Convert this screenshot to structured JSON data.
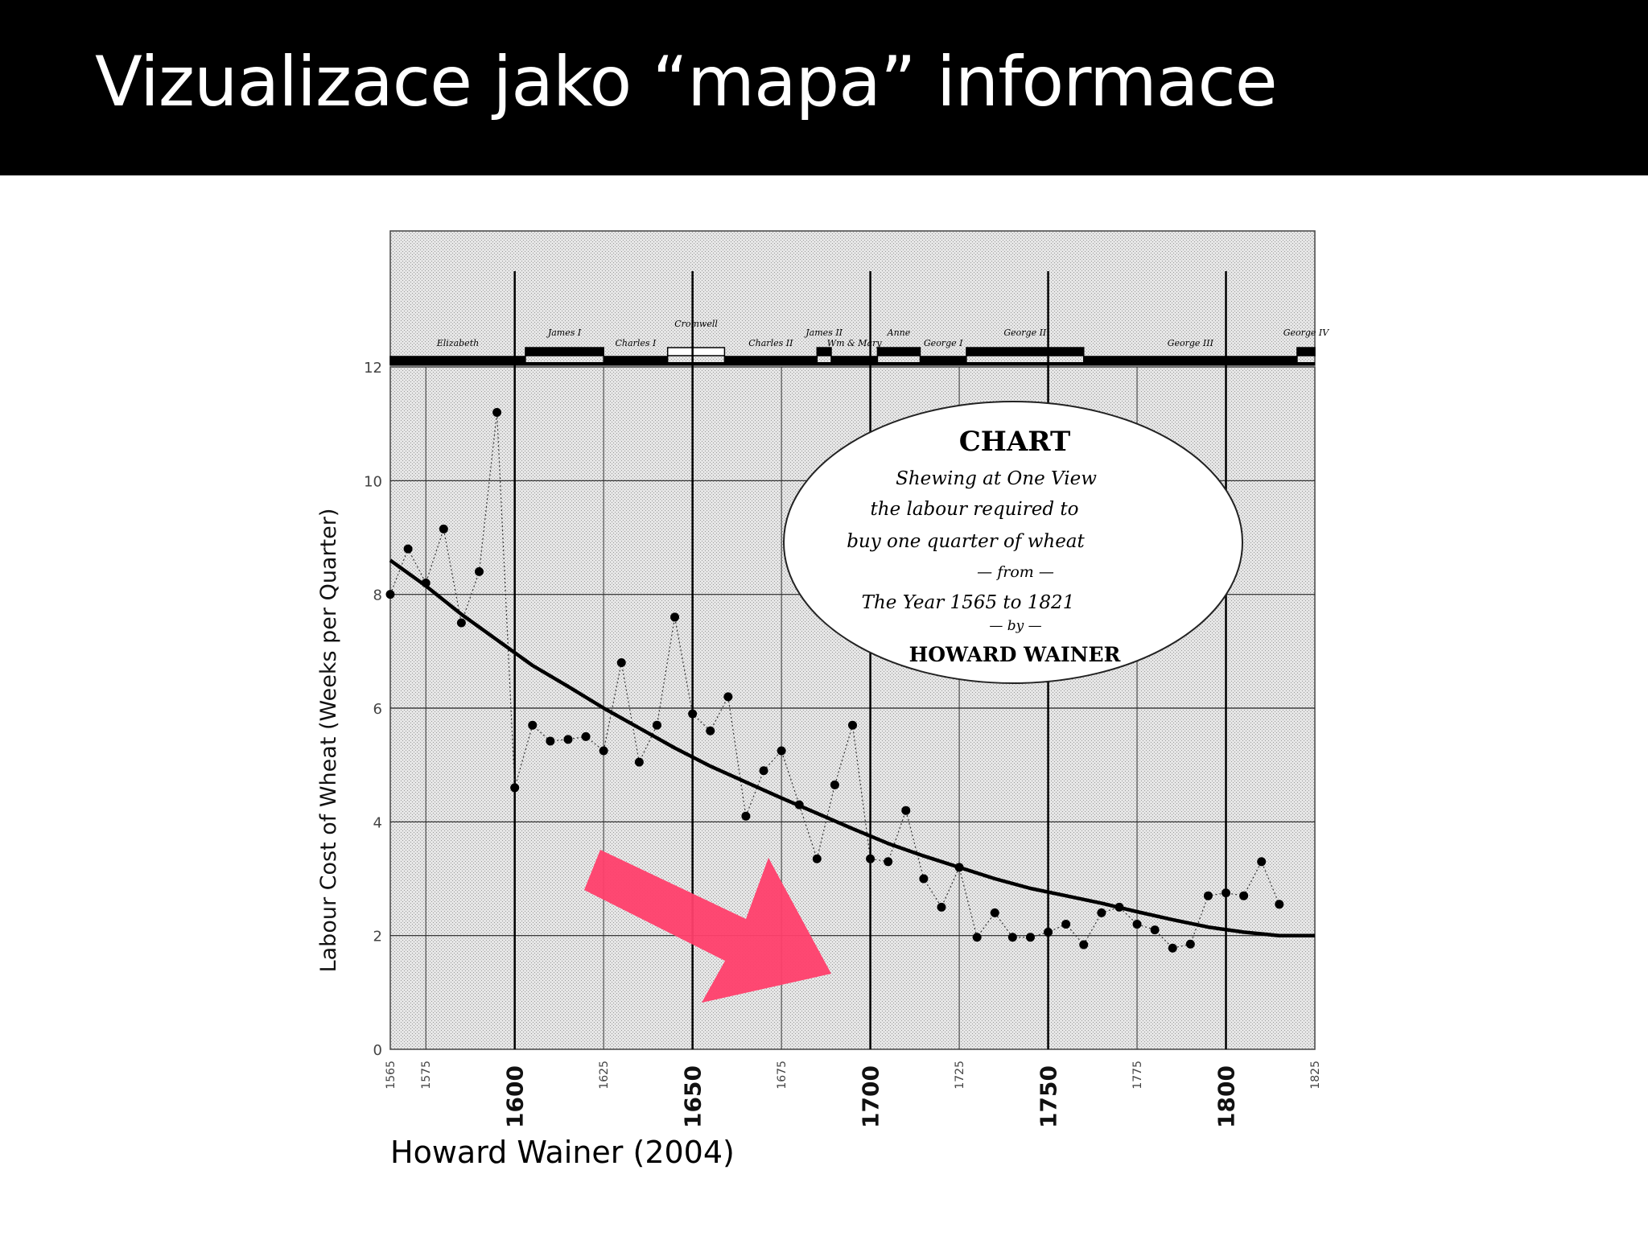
{
  "slide": {
    "title": "Vizualizace jako “mapa” informace",
    "caption": "Howard Wainer (2004)"
  },
  "colors": {
    "title_bar": "#000000",
    "title_text": "#ffffff",
    "plot_bg": "#e6e6e6",
    "arrow": "#ff3f6c"
  },
  "annotation": {
    "type": "arrow",
    "color": "#ff3f6c",
    "direction": "down-right",
    "icon": "arrow-icon"
  },
  "chart_data": {
    "type": "scatter",
    "title": "",
    "ylabel": "Labour Cost of Wheat (Weeks per Quarter)",
    "xlabel": "",
    "xlim": [
      1565,
      1825
    ],
    "ylim": [
      0,
      12
    ],
    "grid": true,
    "x_ticks_minor": [
      1565,
      1575,
      1625,
      1675,
      1725,
      1775,
      1825
    ],
    "x_ticks_major": [
      1600,
      1650,
      1700,
      1750,
      1800
    ],
    "y_ticks": [
      0,
      2,
      4,
      6,
      8,
      10,
      12
    ],
    "y_tick_labels": [
      "0",
      "2",
      "4",
      "6",
      "8",
      "10",
      "12"
    ],
    "x_tick_labels": {
      "1565": "1565",
      "1575": "1575",
      "1600": "1600",
      "1625": "1625",
      "1650": "1650",
      "1675": "1675",
      "1700": "1700",
      "1725": "1725",
      "1750": "1750",
      "1775": "1775",
      "1800": "1800",
      "1825": "1825"
    },
    "series": [
      {
        "style": "points-dotted",
        "x": [
          1565,
          1570,
          1575,
          1580,
          1585,
          1590,
          1595,
          1600,
          1605,
          1610,
          1615,
          1620,
          1625,
          1630,
          1635,
          1640,
          1645,
          1650,
          1655,
          1660,
          1665,
          1670,
          1675,
          1680,
          1685,
          1690,
          1695,
          1700,
          1705,
          1710,
          1715,
          1720,
          1725,
          1730,
          1735,
          1740,
          1745,
          1750,
          1755,
          1760,
          1765,
          1770,
          1775,
          1780,
          1785,
          1790,
          1795,
          1800,
          1805,
          1810,
          1815
        ],
        "y": [
          8.0,
          8.8,
          8.2,
          9.15,
          7.5,
          8.4,
          11.2,
          4.6,
          5.7,
          5.42,
          5.45,
          5.5,
          5.25,
          6.8,
          5.05,
          5.7,
          7.6,
          5.9,
          5.6,
          6.2,
          4.1,
          4.9,
          5.25,
          4.3,
          3.35,
          4.65,
          5.7,
          3.35,
          3.3,
          4.2,
          3.0,
          2.5,
          3.2,
          1.97,
          2.4,
          1.97,
          1.97,
          2.06,
          2.2,
          1.84,
          2.4,
          2.5,
          2.2,
          2.1,
          1.78,
          1.85,
          2.7,
          2.75,
          2.7,
          3.3,
          2.55
        ]
      },
      {
        "style": "fitted-curve",
        "x": [
          1565,
          1575,
          1585,
          1595,
          1605,
          1615,
          1625,
          1635,
          1645,
          1655,
          1665,
          1675,
          1685,
          1695,
          1705,
          1715,
          1725,
          1735,
          1745,
          1755,
          1765,
          1775,
          1785,
          1795,
          1805,
          1815,
          1825
        ],
        "y": [
          8.6,
          8.15,
          7.65,
          7.2,
          6.75,
          6.38,
          6.0,
          5.65,
          5.3,
          4.98,
          4.7,
          4.42,
          4.15,
          3.88,
          3.62,
          3.4,
          3.2,
          3.0,
          2.83,
          2.7,
          2.57,
          2.42,
          2.28,
          2.15,
          2.06,
          2.0,
          2.0
        ]
      }
    ],
    "reigns": [
      {
        "name": "Elizabeth",
        "start": 1565,
        "end": 1603,
        "level": 0,
        "fill": "#000000"
      },
      {
        "name": "James I",
        "start": 1603,
        "end": 1625,
        "level": 1,
        "fill": "#000000"
      },
      {
        "name": "Charles I",
        "start": 1625,
        "end": 1643,
        "level": 0,
        "fill": "#000000"
      },
      {
        "name": "Cromwell",
        "start": 1643,
        "end": 1659,
        "level": 1,
        "fill": "#ffffff"
      },
      {
        "name": "Charles II",
        "start": 1659,
        "end": 1685,
        "level": 0,
        "fill": "#000000"
      },
      {
        "name": "James II",
        "start": 1685,
        "end": 1689,
        "level": 1,
        "fill": "#000000"
      },
      {
        "name": "Wm & Mary",
        "start": 1689,
        "end": 1702,
        "level": 0,
        "fill": "#000000"
      },
      {
        "name": "Anne",
        "start": 1702,
        "end": 1714,
        "level": 1,
        "fill": "#000000"
      },
      {
        "name": "George I",
        "start": 1714,
        "end": 1727,
        "level": 0,
        "fill": "#000000"
      },
      {
        "name": "George II",
        "start": 1727,
        "end": 1760,
        "level": 1,
        "fill": "#000000"
      },
      {
        "name": "George III",
        "start": 1760,
        "end": 1820,
        "level": 0,
        "fill": "#000000"
      },
      {
        "name": "George IV",
        "start": 1820,
        "end": 1830,
        "level": 1,
        "fill": "#000000"
      }
    ],
    "cartouche": {
      "heading": "CHART",
      "line1": "Shewing at One View",
      "line2": "the labour required to",
      "line3": "buy one quarter of wheat",
      "line4": "— from —",
      "line5": "The Year 1565 to 1821",
      "line6": "— by —",
      "author": "HOWARD WAINER"
    }
  }
}
